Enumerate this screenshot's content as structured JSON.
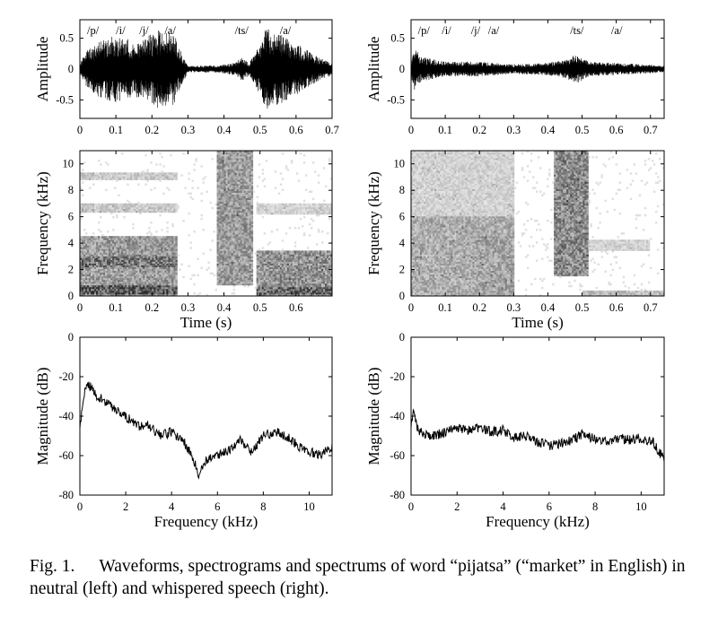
{
  "caption": {
    "label": "Fig. 1.",
    "text": "Waveforms, spectrograms and spectrums of word “pijatsa” (“market” in English) in neutral (left) and whispered speech (right)."
  },
  "chart_data": [
    {
      "type": "line",
      "panel": "neutral waveform",
      "ylabel": "Amplitude",
      "xlim": [
        0,
        0.7
      ],
      "ylim": [
        -0.8,
        0.8
      ],
      "x_ticks": [
        "0",
        "0.1",
        "0.2",
        "0.3",
        "0.4",
        "0.5",
        "0.6",
        "0.7"
      ],
      "y_ticks": [
        "0.5",
        "0",
        "-0.5"
      ],
      "y_tick_values": [
        0.5,
        0,
        -0.5
      ],
      "phoneme_labels": [
        {
          "label": "/p/",
          "t": 0.02
        },
        {
          "label": "/i/",
          "t": 0.1
        },
        {
          "label": "/j/",
          "t": 0.165
        },
        {
          "label": "/a/",
          "t": 0.235
        },
        {
          "label": "/ts/",
          "t": 0.43
        },
        {
          "label": "/a/",
          "t": 0.555
        }
      ],
      "envelope": [
        [
          0,
          0.1
        ],
        [
          0.02,
          0.3
        ],
        [
          0.05,
          0.45
        ],
        [
          0.1,
          0.55
        ],
        [
          0.15,
          0.45
        ],
        [
          0.18,
          0.5
        ],
        [
          0.22,
          0.65
        ],
        [
          0.26,
          0.6
        ],
        [
          0.28,
          0.3
        ],
        [
          0.3,
          0.05
        ],
        [
          0.38,
          0.06
        ],
        [
          0.43,
          0.1
        ],
        [
          0.45,
          0.2
        ],
        [
          0.47,
          0.1
        ],
        [
          0.49,
          0.3
        ],
        [
          0.52,
          0.7
        ],
        [
          0.56,
          0.55
        ],
        [
          0.62,
          0.35
        ],
        [
          0.66,
          0.2
        ],
        [
          0.7,
          0.1
        ]
      ]
    },
    {
      "type": "line",
      "panel": "whispered waveform",
      "ylabel": "Amplitude",
      "xlim": [
        0,
        0.74
      ],
      "ylim": [
        -0.8,
        0.8
      ],
      "x_ticks": [
        "0",
        "0.1",
        "0.2",
        "0.3",
        "0.4",
        "0.5",
        "0.6",
        "0.7"
      ],
      "y_ticks": [
        "0.5",
        "0",
        "-0.5"
      ],
      "y_tick_values": [
        0.5,
        0,
        -0.5
      ],
      "phoneme_labels": [
        {
          "label": "/p/",
          "t": 0.02
        },
        {
          "label": "/i/",
          "t": 0.09
        },
        {
          "label": "/j/",
          "t": 0.175
        },
        {
          "label": "/a/",
          "t": 0.225
        },
        {
          "label": "/ts/",
          "t": 0.465
        },
        {
          "label": "/a/",
          "t": 0.585
        }
      ],
      "envelope": [
        [
          0,
          0.15
        ],
        [
          0.01,
          0.35
        ],
        [
          0.03,
          0.2
        ],
        [
          0.1,
          0.12
        ],
        [
          0.2,
          0.12
        ],
        [
          0.3,
          0.08
        ],
        [
          0.4,
          0.1
        ],
        [
          0.45,
          0.15
        ],
        [
          0.48,
          0.25
        ],
        [
          0.52,
          0.12
        ],
        [
          0.6,
          0.1
        ],
        [
          0.7,
          0.07
        ],
        [
          0.74,
          0.05
        ]
      ]
    },
    {
      "type": "heatmap",
      "panel": "neutral spectrogram",
      "xlabel": "Time (s)",
      "ylabel": "Frequency (kHz)",
      "xlim": [
        0,
        0.7
      ],
      "ylim": [
        0,
        11
      ],
      "x_ticks": [
        "0",
        "0.1",
        "0.2",
        "0.3",
        "0.4",
        "0.5",
        "0.6"
      ],
      "y_ticks": [
        "0",
        "2",
        "4",
        "6",
        "8",
        "10"
      ],
      "y_tick_values": [
        0,
        2,
        4,
        6,
        8,
        10
      ],
      "energy_regions": [
        {
          "t": [
            0.0,
            0.27
          ],
          "f": [
            0,
            4.5
          ],
          "level": 0.55
        },
        {
          "t": [
            0.0,
            0.27
          ],
          "f": [
            0.1,
            0.8
          ],
          "level": 0.9
        },
        {
          "t": [
            0.0,
            0.27
          ],
          "f": [
            2.2,
            3.0
          ],
          "level": 0.75
        },
        {
          "t": [
            0.0,
            0.27
          ],
          "f": [
            6.3,
            7.0
          ],
          "level": 0.3
        },
        {
          "t": [
            0.0,
            0.27
          ],
          "f": [
            8.8,
            9.4
          ],
          "level": 0.3
        },
        {
          "t": [
            0.38,
            0.48
          ],
          "f": [
            0.8,
            11
          ],
          "level": 0.55
        },
        {
          "t": [
            0.49,
            0.7
          ],
          "f": [
            0,
            3.5
          ],
          "level": 0.6
        },
        {
          "t": [
            0.49,
            0.7
          ],
          "f": [
            0.1,
            0.7
          ],
          "level": 0.85
        },
        {
          "t": [
            0.49,
            0.7
          ],
          "f": [
            6.2,
            7.0
          ],
          "level": 0.25
        }
      ]
    },
    {
      "type": "heatmap",
      "panel": "whispered spectrogram",
      "xlabel": "Time (s)",
      "ylabel": "Frequency (kHz)",
      "xlim": [
        0,
        0.74
      ],
      "ylim": [
        0,
        11
      ],
      "x_ticks": [
        "0",
        "0.1",
        "0.2",
        "0.3",
        "0.4",
        "0.5",
        "0.6",
        "0.7"
      ],
      "y_ticks": [
        "0",
        "2",
        "4",
        "6",
        "8",
        "10"
      ],
      "y_tick_values": [
        0,
        2,
        4,
        6,
        8,
        10
      ],
      "energy_regions": [
        {
          "t": [
            0.0,
            0.3
          ],
          "f": [
            0,
            6
          ],
          "level": 0.45
        },
        {
          "t": [
            0.0,
            0.3
          ],
          "f": [
            6,
            11
          ],
          "level": 0.25
        },
        {
          "t": [
            0.18,
            0.3
          ],
          "f": [
            0.2,
            4.5
          ],
          "level": 0.5
        },
        {
          "t": [
            0.42,
            0.52
          ],
          "f": [
            1.5,
            11
          ],
          "level": 0.65
        },
        {
          "t": [
            0.5,
            0.7
          ],
          "f": [
            3.5,
            4.3
          ],
          "level": 0.25
        },
        {
          "t": [
            0.5,
            0.74
          ],
          "f": [
            0,
            0.4
          ],
          "level": 0.35
        }
      ]
    },
    {
      "type": "line",
      "panel": "neutral spectrum",
      "xlabel": "Frequency (kHz)",
      "ylabel": "Magnitude (dB)",
      "xlim": [
        0,
        11
      ],
      "ylim": [
        -80,
        0
      ],
      "x_ticks": [
        "0",
        "2",
        "4",
        "6",
        "8",
        "10"
      ],
      "x_tick_values": [
        0,
        2,
        4,
        6,
        8,
        10
      ],
      "y_ticks": [
        "0",
        "-20",
        "-40",
        "-60",
        "-80"
      ],
      "y_tick_values": [
        0,
        -20,
        -40,
        -60,
        -80
      ],
      "x": [
        0,
        0.3,
        0.6,
        1,
        1.5,
        2,
        2.5,
        3,
        3.5,
        4,
        4.5,
        5,
        5.2,
        5.5,
        6,
        6.5,
        7,
        7.5,
        8,
        8.5,
        9,
        9.5,
        10,
        10.5,
        11
      ],
      "y": [
        -45,
        -22,
        -28,
        -32,
        -36,
        -40,
        -45,
        -44,
        -50,
        -48,
        -52,
        -63,
        -70,
        -62,
        -60,
        -57,
        -52,
        -58,
        -50,
        -48,
        -50,
        -55,
        -58,
        -60,
        -55
      ]
    },
    {
      "type": "line",
      "panel": "whispered spectrum",
      "xlabel": "Frequency (kHz)",
      "ylabel": "Magnitude (dB)",
      "xlim": [
        0,
        11
      ],
      "ylim": [
        -80,
        0
      ],
      "x_ticks": [
        "0",
        "2",
        "4",
        "6",
        "8",
        "10"
      ],
      "x_tick_values": [
        0,
        2,
        4,
        6,
        8,
        10
      ],
      "y_ticks": [
        "0",
        "-20",
        "-40",
        "-60",
        "-80"
      ],
      "y_tick_values": [
        0,
        -20,
        -40,
        -60,
        -80
      ],
      "x": [
        0,
        0.1,
        0.3,
        0.6,
        1,
        1.5,
        2,
        2.5,
        3,
        3.5,
        4,
        4.5,
        5,
        5.5,
        6,
        6.5,
        7,
        7.5,
        8,
        8.5,
        9,
        9.5,
        10,
        10.5,
        11
      ],
      "y": [
        -45,
        -36,
        -47,
        -49,
        -50,
        -48,
        -46,
        -47,
        -46,
        -48,
        -47,
        -51,
        -50,
        -53,
        -55,
        -54,
        -52,
        -49,
        -52,
        -53,
        -51,
        -52,
        -51,
        -53,
        -62
      ]
    }
  ]
}
